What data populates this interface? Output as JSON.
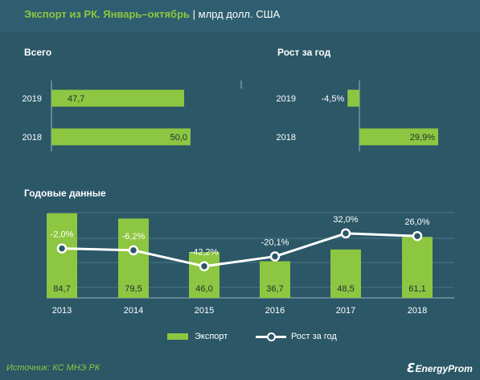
{
  "header": {
    "title_main": "Экспорт из РК. Январь–октябрь",
    "title_sep": " | ",
    "title_unit": "млрд долл. США"
  },
  "colors": {
    "bar": "#8dc641",
    "line": "#ffffff",
    "background": "#2b5767",
    "source": "#8dc641"
  },
  "chart_data": [
    {
      "type": "bar",
      "orientation": "horizontal",
      "title": "Всего",
      "categories": [
        "2019",
        "2018"
      ],
      "values": [
        47.7,
        50.0
      ],
      "value_labels": [
        "47,7",
        "50,0"
      ],
      "xlim": [
        0,
        50.0
      ]
    },
    {
      "type": "bar",
      "orientation": "horizontal",
      "title": "Рост за год",
      "categories": [
        "2019",
        "2018"
      ],
      "values": [
        -4.5,
        29.9
      ],
      "value_labels": [
        "-4,5%",
        "29,9%"
      ],
      "xlim": [
        -5,
        29.9
      ]
    },
    {
      "type": "bar+line",
      "title": "Годовые данные",
      "categories": [
        "2013",
        "2014",
        "2015",
        "2016",
        "2017",
        "2018"
      ],
      "series": [
        {
          "name": "Экспорт",
          "type": "bar",
          "values": [
            84.7,
            79.5,
            46.0,
            36.7,
            48.5,
            61.1
          ],
          "value_labels": [
            "84,7",
            "79,5",
            "46,0",
            "36,7",
            "48,5",
            "61,1"
          ]
        },
        {
          "name": "Рост за год",
          "type": "line",
          "values": [
            -2.0,
            -6.2,
            -42.2,
            -20.1,
            32.0,
            26.0
          ],
          "value_labels": [
            "-2,0%",
            "-6,2%",
            "-42,2%",
            "-20,1%",
            "32,0%",
            "26,0%"
          ]
        }
      ],
      "legend": "bottom",
      "grid": true
    }
  ],
  "footer": {
    "source": "Источник: КС МНЭ РК",
    "brand": "EnergyProm"
  }
}
